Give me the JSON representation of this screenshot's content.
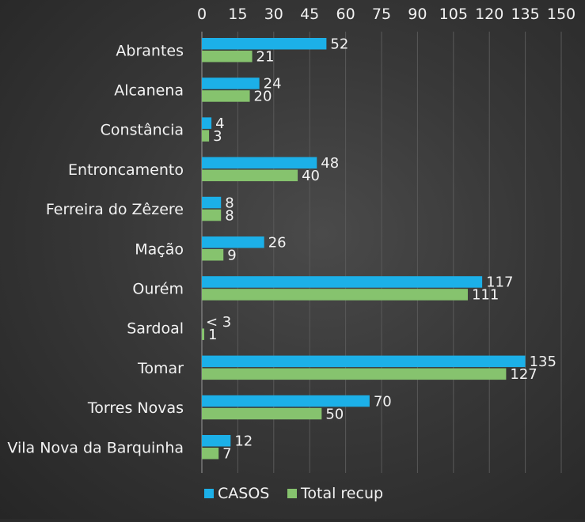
{
  "chart_data": {
    "type": "bar",
    "orientation": "horizontal",
    "categories": [
      "Abrantes",
      "Alcanena",
      "Constância",
      "Entroncamento",
      "Ferreira do Zêzere",
      "Mação",
      "Ourém",
      "Sardoal",
      "Tomar",
      "Torres Novas",
      "Vila Nova da Barquinha"
    ],
    "series": [
      {
        "name": "CASOS",
        "color": "#1cb0e8",
        "values": [
          52,
          24,
          4,
          48,
          8,
          26,
          117,
          null,
          135,
          70,
          12
        ],
        "labels": [
          "52",
          "24",
          "4",
          "48",
          "8",
          "26",
          "117",
          "< 3",
          "135",
          "70",
          "12"
        ]
      },
      {
        "name": "Total recup",
        "color": "#86c36e",
        "values": [
          21,
          20,
          3,
          40,
          8,
          9,
          111,
          1,
          127,
          50,
          7
        ],
        "labels": [
          "21",
          "20",
          "3",
          "40",
          "8",
          "9",
          "111",
          "1",
          "127",
          "50",
          "7"
        ]
      }
    ],
    "xlim": [
      0,
      150
    ],
    "xticks": [
      0,
      15,
      30,
      45,
      60,
      75,
      90,
      105,
      120,
      135,
      150
    ],
    "x_axis_position": "top",
    "grid": true,
    "legend_position": "bottom",
    "title": "",
    "xlabel": "",
    "ylabel": ""
  }
}
